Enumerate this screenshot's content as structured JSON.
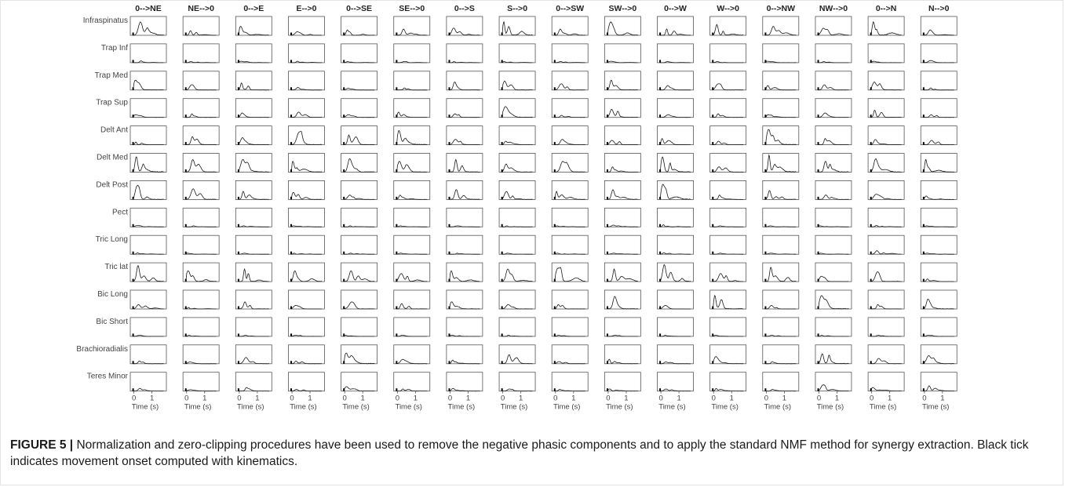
{
  "figure": {
    "label": "FIGURE 5 |",
    "caption": "Normalization and zero-clipping procedures have been used to remove the negative phasic components and to apply the standard NMF method for synergy extraction. Black tick indicates movement onset computed with kinematics."
  },
  "colors": {
    "trace": "#1a1a1a",
    "axes": "#555555",
    "onset_tick": "#000000",
    "text": "#222222"
  },
  "chart_data": {
    "type": "line",
    "layout": "small-multiples grid (muscles x movement directions)",
    "columns": [
      "0-->NE",
      "NE-->0",
      "0-->E",
      "E-->0",
      "0-->SE",
      "SE-->0",
      "0-->S",
      "S-->0",
      "0-->SW",
      "SW-->0",
      "0-->W",
      "W-->0",
      "0-->NW",
      "NW-->0",
      "0-->N",
      "N-->0"
    ],
    "rows": [
      "Infraspinatus",
      "Trap Inf",
      "Trap Med",
      "Trap Sup",
      "Delt Ant",
      "Delt Med",
      "Delt Post",
      "Pect",
      "Tric Long",
      "Tric lat",
      "Bic Long",
      "Bic Short",
      "Brachioradialis",
      "Teres Minor"
    ],
    "xlabel": "Time (s)",
    "xticks": [
      "0",
      "1"
    ],
    "xlim": [
      -0.2,
      1.8
    ],
    "ylim": [
      0,
      1
    ],
    "grid": false,
    "legend": "none",
    "onset_marker": "black tick at movement onset",
    "peak_amplitude": [
      [
        0.75,
        0.25,
        0.5,
        0.2,
        0.3,
        0.35,
        0.4,
        0.75,
        0.35,
        0.75,
        0.35,
        0.6,
        0.5,
        0.4,
        0.75,
        0.3
      ],
      [
        0.1,
        0.06,
        0.08,
        0.08,
        0.06,
        0.06,
        0.06,
        0.06,
        0.06,
        0.08,
        0.06,
        0.06,
        0.08,
        0.06,
        0.08,
        0.12
      ],
      [
        0.55,
        0.3,
        0.4,
        0.15,
        0.1,
        0.12,
        0.45,
        0.5,
        0.35,
        0.55,
        0.25,
        0.35,
        0.25,
        0.3,
        0.45,
        0.12
      ],
      [
        0.15,
        0.2,
        0.25,
        0.3,
        0.15,
        0.3,
        0.2,
        0.6,
        0.12,
        0.45,
        0.15,
        0.2,
        0.15,
        0.25,
        0.4,
        0.15
      ],
      [
        0.15,
        0.45,
        0.4,
        0.75,
        0.55,
        0.8,
        0.3,
        0.2,
        0.3,
        0.25,
        0.35,
        0.2,
        0.85,
        0.35,
        0.3,
        0.25
      ],
      [
        0.85,
        0.7,
        0.7,
        0.6,
        0.75,
        0.6,
        0.7,
        0.45,
        0.6,
        0.3,
        0.85,
        0.3,
        0.95,
        0.6,
        0.75,
        0.7
      ],
      [
        0.8,
        0.6,
        0.45,
        0.4,
        0.25,
        0.25,
        0.55,
        0.45,
        0.45,
        0.55,
        0.85,
        0.25,
        0.5,
        0.25,
        0.3,
        0.2
      ],
      [
        0.08,
        0.06,
        0.06,
        0.06,
        0.06,
        0.06,
        0.06,
        0.06,
        0.06,
        0.1,
        0.12,
        0.06,
        0.06,
        0.06,
        0.08,
        0.06
      ],
      [
        0.08,
        0.06,
        0.06,
        0.06,
        0.06,
        0.06,
        0.06,
        0.06,
        0.06,
        0.06,
        0.08,
        0.06,
        0.06,
        0.06,
        0.2,
        0.06
      ],
      [
        0.9,
        0.6,
        0.7,
        0.6,
        0.6,
        0.45,
        0.6,
        0.7,
        0.8,
        0.7,
        0.95,
        0.45,
        0.8,
        0.3,
        0.55,
        0.15
      ],
      [
        0.25,
        0.08,
        0.4,
        0.2,
        0.4,
        0.3,
        0.4,
        0.25,
        0.25,
        0.7,
        0.2,
        0.75,
        0.2,
        0.75,
        0.25,
        0.55
      ],
      [
        0.06,
        0.06,
        0.06,
        0.06,
        0.06,
        0.06,
        0.06,
        0.06,
        0.06,
        0.06,
        0.06,
        0.06,
        0.06,
        0.06,
        0.06,
        0.06
      ],
      [
        0.15,
        0.1,
        0.35,
        0.15,
        0.6,
        0.25,
        0.2,
        0.5,
        0.12,
        0.25,
        0.1,
        0.4,
        0.12,
        0.55,
        0.3,
        0.45
      ],
      [
        0.15,
        0.08,
        0.2,
        0.1,
        0.25,
        0.12,
        0.15,
        0.12,
        0.1,
        0.12,
        0.12,
        0.15,
        0.1,
        0.35,
        0.2,
        0.3
      ]
    ]
  }
}
